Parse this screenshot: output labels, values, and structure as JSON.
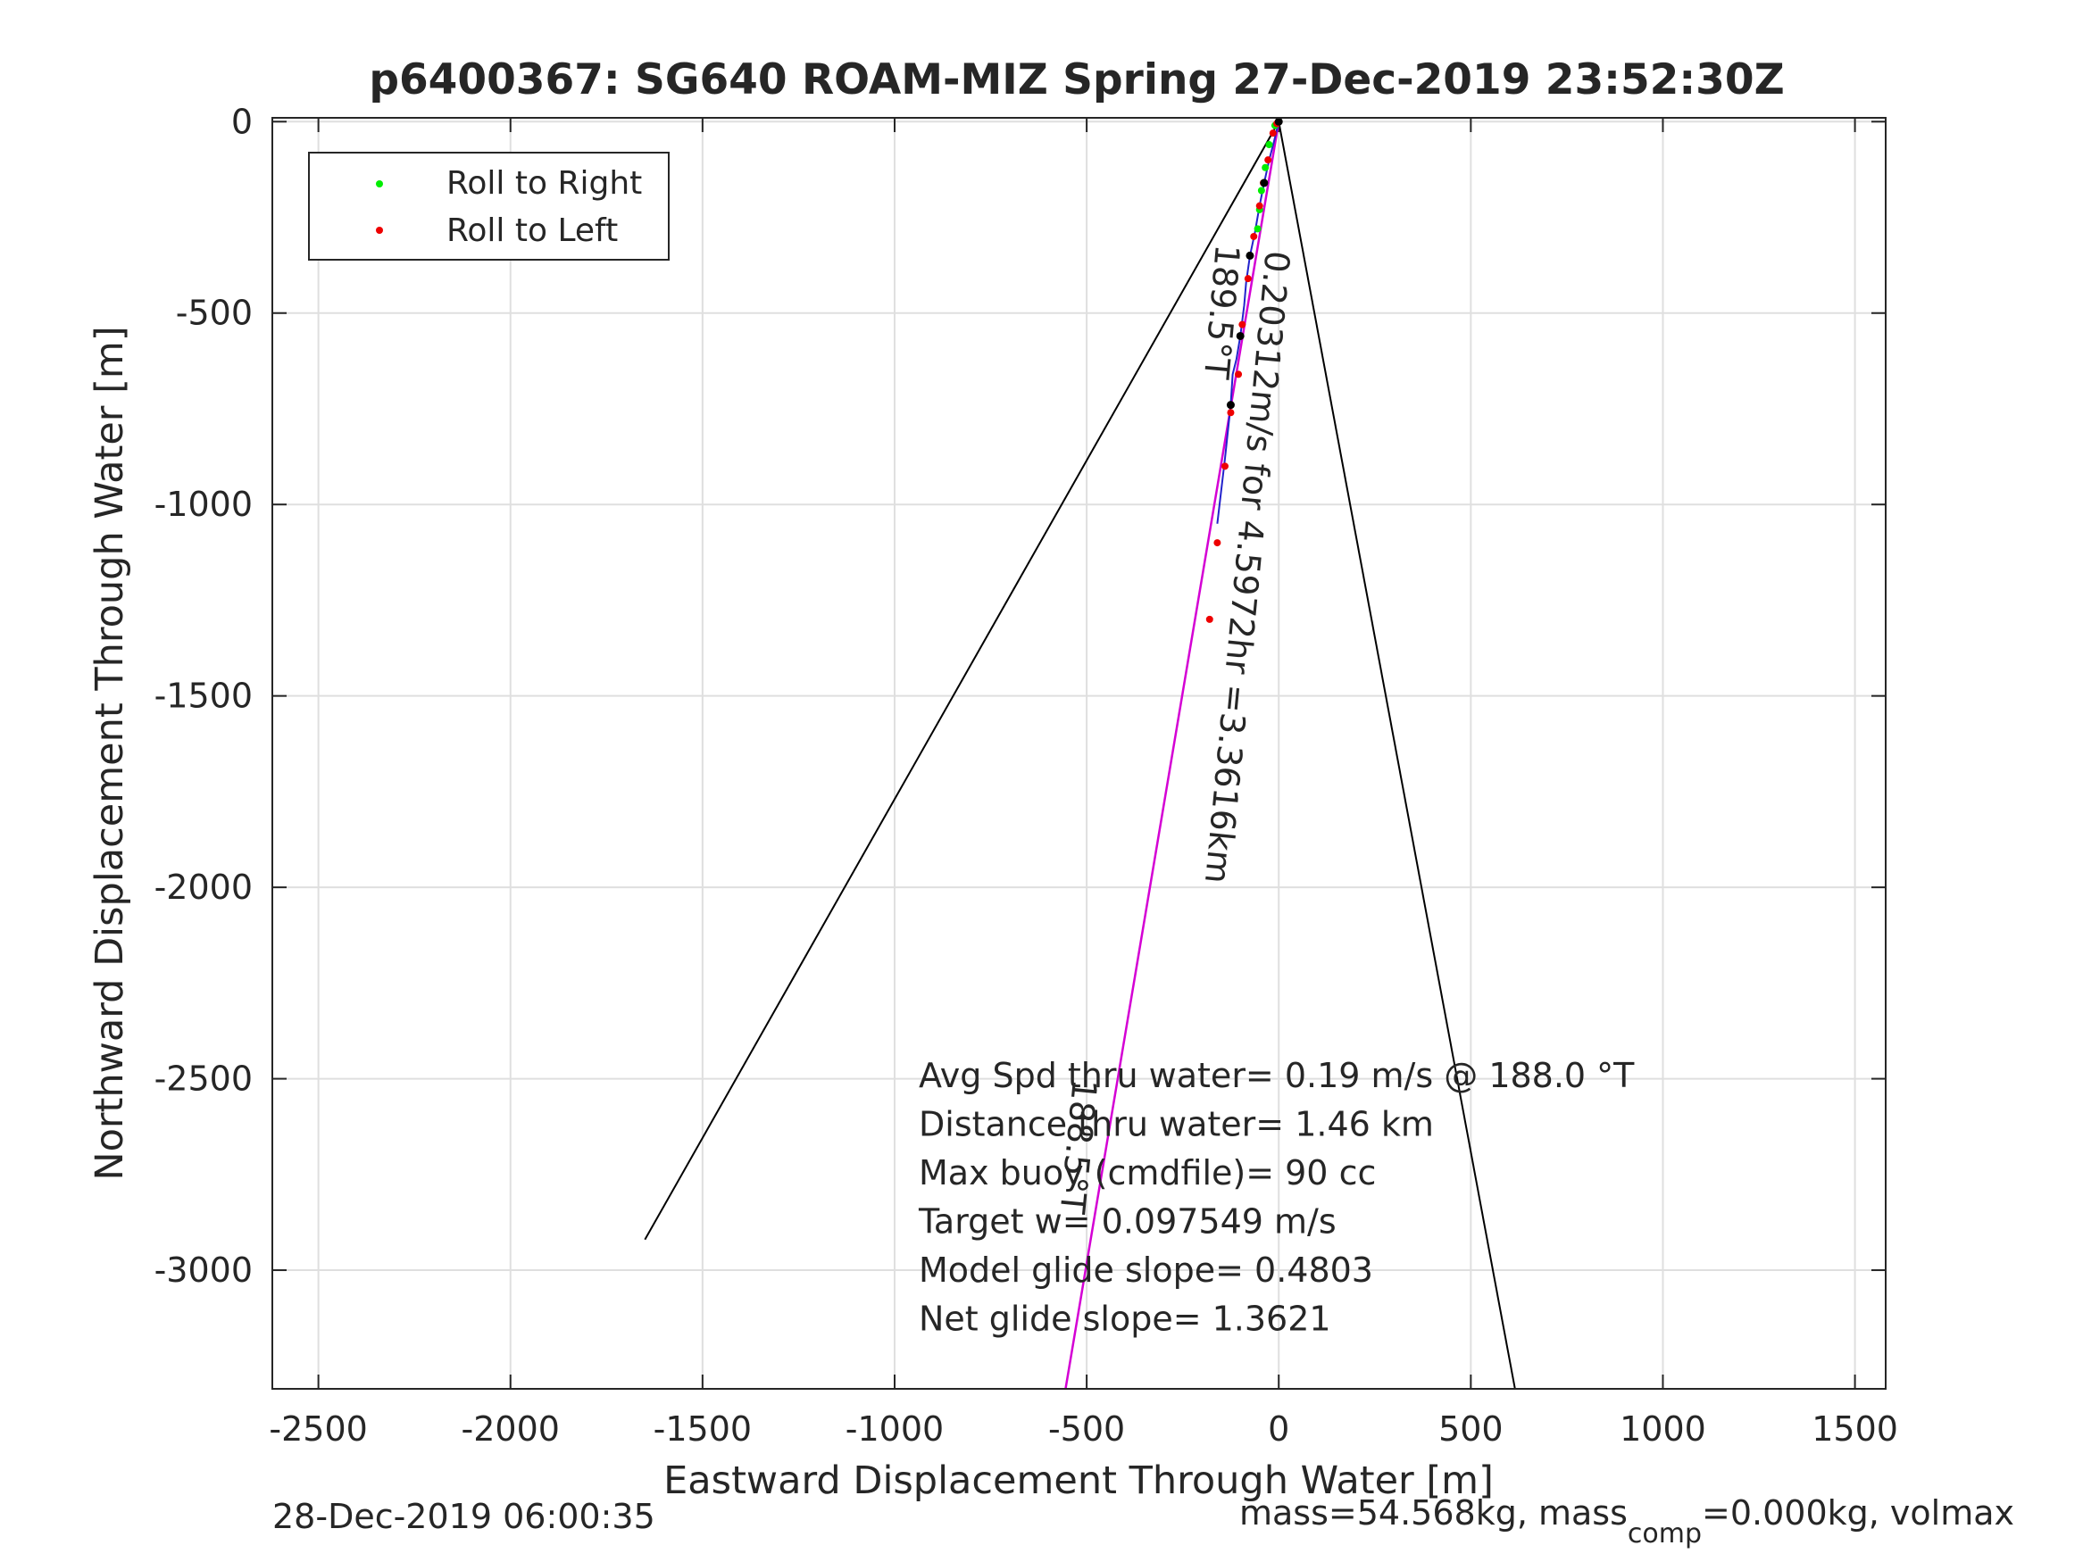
{
  "chart_data": {
    "type": "scatter",
    "title": "p6400367: SG640 ROAM-MIZ Spring 27-Dec-2019 23:52:30Z",
    "xlabel": "Eastward Displacement Through Water [m]",
    "ylabel": "Northward Displacement Through Water [m]",
    "xlim": [
      -2620,
      1580
    ],
    "ylim": [
      -3310,
      10
    ],
    "xticks": [
      -2500,
      -2000,
      -1500,
      -1000,
      -500,
      0,
      500,
      1000,
      1500
    ],
    "yticks": [
      0,
      -500,
      -1000,
      -1500,
      -2000,
      -2500,
      -3000
    ],
    "grid": true,
    "legend": {
      "placement": "top-left",
      "entries": [
        {
          "label": "Roll to Right",
          "color": "#00ee00"
        },
        {
          "label": "Roll to Left",
          "color": "#ee0000"
        }
      ]
    },
    "series": [
      {
        "name": "Roll to Right",
        "color": "#00ee00",
        "x": [
          -10,
          -25,
          -35,
          -45,
          -50,
          -55
        ],
        "y": [
          -10,
          -60,
          -120,
          -180,
          -230,
          -280
        ]
      },
      {
        "name": "Roll to Left",
        "color": "#ee0000",
        "x": [
          -5,
          -15,
          -28,
          -40,
          -50,
          -65,
          -80,
          -95,
          -105,
          -125,
          -140,
          -160,
          -180
        ],
        "y": [
          -5,
          -30,
          -100,
          -160,
          -220,
          -300,
          -410,
          -530,
          -660,
          -760,
          -900,
          -1100,
          -1300
        ]
      }
    ],
    "track_points": {
      "x": [
        0,
        -12,
        -25,
        -38,
        -50,
        -62,
        -75,
        -85,
        -90,
        -100,
        -110,
        -120,
        -125,
        -140,
        -160
      ],
      "y": [
        0,
        -50,
        -100,
        -160,
        -220,
        -290,
        -350,
        -420,
        -480,
        -560,
        -620,
        -660,
        -740,
        -880,
        -1050
      ]
    },
    "dir_line": {
      "x": [
        0,
        -555
      ],
      "y": [
        0,
        -3310
      ]
    },
    "cone_lines": [
      {
        "x": [
          0,
          -1650
        ],
        "y": [
          0,
          -2920
        ]
      },
      {
        "x": [
          0,
          615
        ],
        "y": [
          0,
          -3310
        ]
      }
    ],
    "annotations": {
      "heading_top": "189.5°T",
      "rotated_text": "0.20312m/s for 4.5972hr =3.3616km",
      "heading_lower": "188.5°T",
      "stats": [
        "Avg Spd thru water=  0.19 m/s @ 188.0 °T",
        "Distance thru water=  1.46 km",
        "Max buoy (cmdfile)= 90 cc",
        "Target w= 0.097549 m/s",
        "Model glide slope= 0.4803",
        "Net glide slope= 1.3621"
      ]
    },
    "footer_left": "28-Dec-2019 06:00:35",
    "footer_right": {
      "part1": "mass=54.568kg, mass",
      "sub": "comp",
      "part2": "=0.000kg, volmax"
    }
  }
}
